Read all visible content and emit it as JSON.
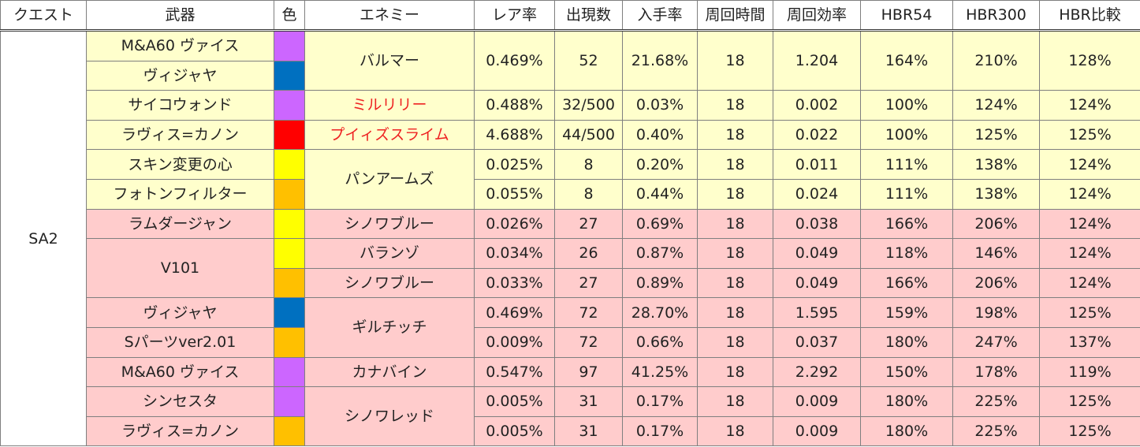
{
  "headers": [
    "クエスト",
    "武器",
    "色",
    "エネミー",
    "レア率",
    "出現数",
    "入手率",
    "周回時間",
    "周回効率",
    "HBR54",
    "HBR300",
    "HBR比較"
  ],
  "colors": {
    "purple": "#cc66ff",
    "blue": "#0070c0",
    "red": "#ff0000",
    "yellow": "#ffff00",
    "orange": "#ffc000",
    "row_yellow": "#ffffcc",
    "row_pink": "#ffcccc",
    "enemy_red_text": "#ee2222"
  },
  "quest": "SA2",
  "rows": [
    {
      "weapon": "M&A60 ヴァイス",
      "color": "purple",
      "enemy": "バルマー",
      "rate": "0.469%",
      "count": "52",
      "obtain": "21.68%",
      "time": "18",
      "eff": "1.204",
      "hbr54": "164%",
      "hbr300": "210%",
      "cmp": "128%"
    },
    {
      "weapon": "ヴィジャヤ",
      "color": "blue"
    },
    {
      "weapon": "サイコウォンド",
      "color": "purple",
      "enemy": "ミルリリー",
      "rate": "0.488%",
      "count": "32/500",
      "obtain": "0.03%",
      "time": "18",
      "eff": "0.002",
      "hbr54": "100%",
      "hbr300": "124%",
      "cmp": "124%"
    },
    {
      "weapon": "ラヴィス=カノン",
      "color": "red",
      "enemy": "プイィズスライム",
      "rate": "4.688%",
      "count": "44/500",
      "obtain": "0.40%",
      "time": "18",
      "eff": "0.022",
      "hbr54": "100%",
      "hbr300": "125%",
      "cmp": "125%"
    },
    {
      "weapon": "スキン変更の心",
      "color": "yellow",
      "enemy": "パンアームズ",
      "rate": "0.025%",
      "count": "8",
      "obtain": "0.20%",
      "time": "18",
      "eff": "0.011",
      "hbr54": "111%",
      "hbr300": "138%",
      "cmp": "124%"
    },
    {
      "weapon": "フォトンフィルター",
      "color": "orange",
      "rate": "0.055%",
      "count": "8",
      "obtain": "0.44%",
      "time": "18",
      "eff": "0.024",
      "hbr54": "111%",
      "hbr300": "138%",
      "cmp": "124%"
    },
    {
      "weapon": "ラムダージャン",
      "color": "yellow",
      "enemy": "シノワブルー",
      "rate": "0.026%",
      "count": "27",
      "obtain": "0.69%",
      "time": "18",
      "eff": "0.038",
      "hbr54": "166%",
      "hbr300": "206%",
      "cmp": "124%"
    },
    {
      "weapon": "V101",
      "color": "yellow",
      "enemy": "バランゾ",
      "rate": "0.034%",
      "count": "26",
      "obtain": "0.87%",
      "time": "18",
      "eff": "0.049",
      "hbr54": "118%",
      "hbr300": "146%",
      "cmp": "124%"
    },
    {
      "color": "orange",
      "enemy": "シノワブルー",
      "rate": "0.033%",
      "count": "27",
      "obtain": "0.89%",
      "time": "18",
      "eff": "0.049",
      "hbr54": "166%",
      "hbr300": "206%",
      "cmp": "124%"
    },
    {
      "weapon": "ヴィジャヤ",
      "color": "blue",
      "enemy": "ギルチッチ",
      "rate": "0.469%",
      "count": "72",
      "obtain": "28.70%",
      "time": "18",
      "eff": "1.595",
      "hbr54": "159%",
      "hbr300": "198%",
      "cmp": "125%"
    },
    {
      "weapon": "Sパーツver2.01",
      "color": "orange",
      "rate": "0.009%",
      "count": "72",
      "obtain": "0.66%",
      "time": "18",
      "eff": "0.037",
      "hbr54": "180%",
      "hbr300": "247%",
      "cmp": "137%"
    },
    {
      "weapon": "M&A60 ヴァイス",
      "color": "purple",
      "enemy": "カナバイン",
      "rate": "0.547%",
      "count": "97",
      "obtain": "41.25%",
      "time": "18",
      "eff": "2.292",
      "hbr54": "150%",
      "hbr300": "178%",
      "cmp": "119%"
    },
    {
      "weapon": "シンセスタ",
      "color": "purple",
      "enemy": "シノワレッド",
      "rate": "0.005%",
      "count": "31",
      "obtain": "0.17%",
      "time": "18",
      "eff": "0.009",
      "hbr54": "180%",
      "hbr300": "225%",
      "cmp": "125%"
    },
    {
      "weapon": "ラヴィス=カノン",
      "color": "orange",
      "rate": "0.005%",
      "count": "31",
      "obtain": "0.17%",
      "time": "18",
      "eff": "0.009",
      "hbr54": "180%",
      "hbr300": "225%",
      "cmp": "125%"
    }
  ]
}
